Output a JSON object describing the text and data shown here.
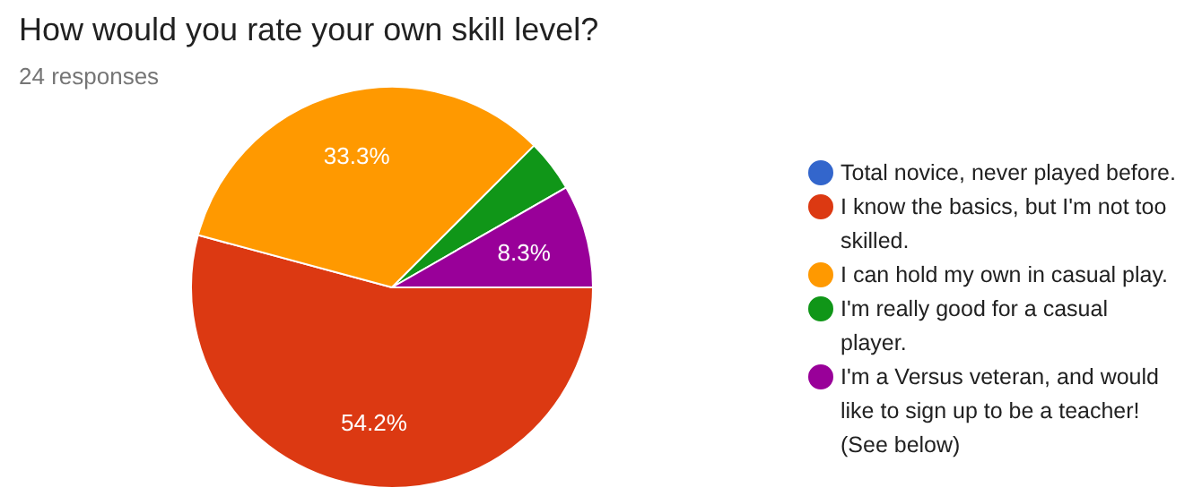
{
  "chart_data": {
    "type": "pie",
    "title": "How would you rate your own skill level?",
    "subtitle": "24 responses",
    "categories": [
      "Total novice, never played before.",
      "I know the basics, but I'm not too skilled.",
      "I can hold my own in casual play.",
      "I'm really good for a casual player.",
      "I'm a Versus veteran, and would like to sign up to be a teacher! (See below)"
    ],
    "values": [
      0,
      54.2,
      33.3,
      4.2,
      8.3
    ],
    "colors": [
      "#3366cc",
      "#dc3912",
      "#ff9900",
      "#109618",
      "#990099"
    ],
    "value_labels": [
      null,
      "54.2%",
      "33.3%",
      null,
      "8.3%"
    ],
    "legend": "right"
  }
}
